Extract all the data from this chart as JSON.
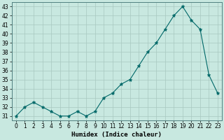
{
  "x": [
    0,
    1,
    2,
    3,
    4,
    5,
    6,
    7,
    8,
    9,
    10,
    11,
    12,
    13,
    14,
    15,
    16,
    17,
    18,
    19,
    20,
    21,
    22,
    23
  ],
  "y": [
    31,
    32,
    32.5,
    32,
    31.5,
    31,
    31,
    31.5,
    31,
    31.5,
    33,
    33.5,
    34.5,
    35,
    36.5,
    38,
    39,
    40.5,
    42,
    43,
    41.5,
    40.5,
    35.5,
    33.5
  ],
  "background_color": "#c8e8e0",
  "grid_color": "#a8c8c0",
  "line_color": "#006868",
  "marker_color": "#006868",
  "xlabel": "Humidex (Indice chaleur)",
  "xlim": [
    -0.5,
    23.5
  ],
  "ylim": [
    30.5,
    43.5
  ],
  "yticks": [
    31,
    32,
    33,
    34,
    35,
    36,
    37,
    38,
    39,
    40,
    41,
    42,
    43
  ],
  "xticks": [
    0,
    1,
    2,
    3,
    4,
    5,
    6,
    7,
    8,
    9,
    10,
    11,
    12,
    13,
    14,
    15,
    16,
    17,
    18,
    19,
    20,
    21,
    22,
    23
  ]
}
